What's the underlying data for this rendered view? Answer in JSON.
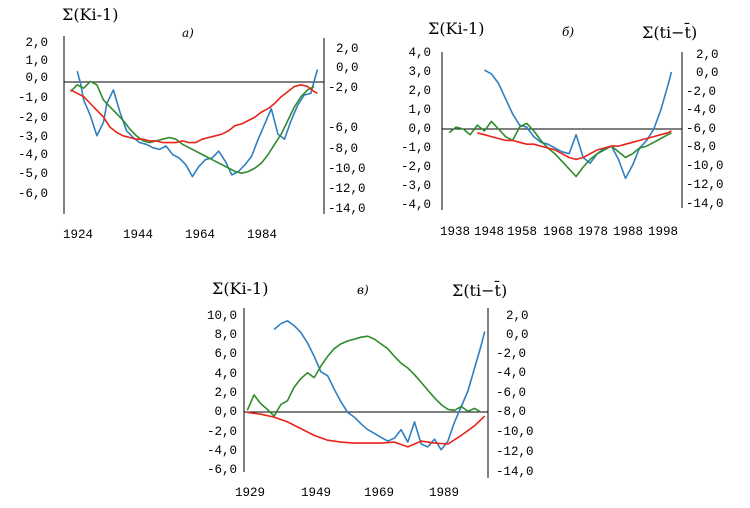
{
  "colors": {
    "blue": "#2f7fc1",
    "green": "#2e8b2e",
    "red": "#e8231a"
  },
  "chart_data": [
    {
      "type": "line",
      "panel_label": "а)",
      "left_ylabel": "Σ(Ki-1)",
      "right_ylabel": "",
      "xlabel": "",
      "xticks": [
        "1924",
        "1944",
        "1964",
        "1984"
      ],
      "left_ticks": [
        "2,0",
        "1,0",
        "0,0",
        "-1,0",
        "-2,0",
        "-3,0",
        "-4,0",
        "-5,0",
        "-6,0"
      ],
      "right_ticks": [
        "2,0",
        "0,0",
        "-2,0",
        "-6,0",
        "-8,0",
        "-10,0",
        "-12,0",
        "-14,0"
      ],
      "xlim": [
        1922,
        2001
      ],
      "ylim_left": [
        -7.5,
        2.5
      ],
      "ylim_right": [
        -14,
        2
      ],
      "series": [
        {
          "color": "blue",
          "axis": "left",
          "x": [
            1926,
            1927,
            1928,
            1930,
            1932,
            1934,
            1935,
            1937,
            1939,
            1941,
            1943,
            1945,
            1947,
            1949,
            1951,
            1953,
            1955,
            1957,
            1959,
            1961,
            1963,
            1965,
            1967,
            1969,
            1971,
            1973,
            1975,
            1977,
            1979,
            1981,
            1983,
            1985,
            1987,
            1989,
            1991,
            1993,
            1995,
            1997,
            1999
          ],
          "y": [
            0.9,
            0.2,
            -0.8,
            -1.7,
            -2.9,
            -2.1,
            -1.0,
            -0.2,
            -1.5,
            -2.6,
            -3.0,
            -3.3,
            -3.4,
            -3.6,
            -3.7,
            -3.5,
            -4.0,
            -4.2,
            -4.6,
            -5.3,
            -4.7,
            -4.3,
            -4.2,
            -3.8,
            -4.4,
            -5.2,
            -5.0,
            -4.6,
            -4.1,
            -3.1,
            -2.2,
            -1.3,
            -2.8,
            -3.1,
            -2.0,
            -1.1,
            -0.5,
            -0.4,
            1.0
          ]
        },
        {
          "color": "green",
          "axis": "left",
          "x": [
            1924,
            1926,
            1928,
            1930,
            1932,
            1934,
            1936,
            1938,
            1940,
            1942,
            1944,
            1946,
            1948,
            1950,
            1952,
            1954,
            1956,
            1958,
            1960,
            1962,
            1964,
            1966,
            1968,
            1970,
            1972,
            1974,
            1976,
            1978,
            1980,
            1982,
            1984,
            1986,
            1988,
            1990,
            1992,
            1994,
            1996,
            1998
          ],
          "y": [
            -0.3,
            0.1,
            -0.1,
            0.3,
            0.1,
            -0.8,
            -1.2,
            -1.6,
            -2.0,
            -2.5,
            -2.9,
            -3.2,
            -3.3,
            -3.2,
            -3.1,
            -3.0,
            -3.1,
            -3.4,
            -3.6,
            -3.8,
            -4.0,
            -4.2,
            -4.4,
            -4.6,
            -4.8,
            -5.0,
            -5.1,
            -5.0,
            -4.8,
            -4.5,
            -4.0,
            -3.4,
            -2.8,
            -2.0,
            -1.2,
            -0.6,
            -0.2,
            0.0
          ]
        },
        {
          "color": "red",
          "axis": "left",
          "x": [
            1924,
            1926,
            1928,
            1930,
            1932,
            1934,
            1936,
            1938,
            1940,
            1942,
            1944,
            1946,
            1948,
            1950,
            1952,
            1954,
            1956,
            1958,
            1960,
            1962,
            1964,
            1966,
            1968,
            1970,
            1972,
            1974,
            1976,
            1978,
            1980,
            1982,
            1984,
            1986,
            1988,
            1990,
            1992,
            1994,
            1996,
            1998,
            1999
          ],
          "y": [
            -0.2,
            -0.4,
            -0.6,
            -1.0,
            -1.4,
            -1.8,
            -2.4,
            -2.7,
            -2.9,
            -3.0,
            -3.1,
            -3.1,
            -3.2,
            -3.2,
            -3.3,
            -3.3,
            -3.3,
            -3.2,
            -3.3,
            -3.3,
            -3.1,
            -3.0,
            -2.9,
            -2.8,
            -2.6,
            -2.3,
            -2.2,
            -2.0,
            -1.8,
            -1.5,
            -1.3,
            -1.0,
            -0.6,
            -0.3,
            0.0,
            0.1,
            0.0,
            -0.3,
            -0.4
          ]
        }
      ]
    },
    {
      "type": "line",
      "panel_label": "б)",
      "left_ylabel": "Σ(Ki-1)",
      "right_ylabel": "Σ(ti−t̄)",
      "xlabel": "",
      "xticks": [
        "1938",
        "1948",
        "1958",
        "1968",
        "1978",
        "1988",
        "1998"
      ],
      "left_ticks": [
        "4,0",
        "3,0",
        "2,0",
        "1,0",
        "0,0",
        "-1,0",
        "-2,0",
        "-3,0",
        "-4,0"
      ],
      "right_ticks": [
        "2,0",
        "0,0",
        "-2,0",
        "-4,0",
        "-6,0",
        "-8,0",
        "-10,0",
        "-12,0",
        "-14,0"
      ],
      "xlim": [
        1935,
        2003
      ],
      "ylim_left": [
        -4,
        4
      ],
      "ylim_right": [
        -14,
        2
      ],
      "series": [
        {
          "color": "blue",
          "axis": "left",
          "x": [
            1947,
            1949,
            1951,
            1953,
            1955,
            1957,
            1959,
            1961,
            1963,
            1965,
            1967,
            1969,
            1971,
            1973,
            1975,
            1977,
            1979,
            1981,
            1983,
            1985,
            1987,
            1989,
            1991,
            1993,
            1995,
            1997,
            1999,
            2000
          ],
          "y": [
            3.1,
            2.9,
            2.4,
            1.6,
            0.8,
            0.2,
            0.1,
            -0.4,
            -0.7,
            -0.8,
            -1.0,
            -1.2,
            -1.3,
            -0.3,
            -1.5,
            -1.8,
            -1.3,
            -1.0,
            -0.9,
            -1.6,
            -2.6,
            -1.9,
            -1.0,
            -0.6,
            0.0,
            1.0,
            2.3,
            3.0
          ]
        },
        {
          "color": "green",
          "axis": "left",
          "x": [
            1937,
            1939,
            1941,
            1943,
            1945,
            1947,
            1949,
            1951,
            1953,
            1955,
            1957,
            1959,
            1961,
            1963,
            1965,
            1967,
            1969,
            1971,
            1973,
            1975,
            1977,
            1979,
            1981,
            1983,
            1985,
            1987,
            1989,
            1991,
            1993,
            1995,
            1997,
            1999,
            2000
          ],
          "y": [
            -0.2,
            0.1,
            0.0,
            -0.3,
            0.2,
            -0.1,
            0.4,
            0.0,
            -0.4,
            -0.6,
            0.1,
            0.3,
            -0.1,
            -0.6,
            -1.0,
            -1.3,
            -1.7,
            -2.1,
            -2.5,
            -2.0,
            -1.6,
            -1.3,
            -1.1,
            -0.9,
            -1.2,
            -1.5,
            -1.3,
            -1.0,
            -0.9,
            -0.7,
            -0.5,
            -0.3,
            -0.2
          ]
        },
        {
          "color": "red",
          "axis": "left",
          "x": [
            1945,
            1947,
            1949,
            1951,
            1953,
            1955,
            1957,
            1959,
            1961,
            1963,
            1965,
            1967,
            1969,
            1971,
            1973,
            1975,
            1977,
            1979,
            1981,
            1983,
            1985,
            1987,
            1989,
            1991,
            1993,
            1995,
            1997,
            1999,
            2000
          ],
          "y": [
            -0.2,
            -0.3,
            -0.4,
            -0.5,
            -0.6,
            -0.6,
            -0.7,
            -0.8,
            -0.8,
            -0.9,
            -1.0,
            -1.1,
            -1.3,
            -1.5,
            -1.6,
            -1.5,
            -1.3,
            -1.1,
            -1.0,
            -0.9,
            -0.9,
            -0.8,
            -0.7,
            -0.6,
            -0.5,
            -0.4,
            -0.3,
            -0.2,
            -0.1
          ]
        }
      ]
    },
    {
      "type": "line",
      "panel_label": "в)",
      "left_ylabel": "Σ(Ki-1)",
      "right_ylabel": "Σ(ti−t̄)",
      "xlabel": "",
      "xticks": [
        "1929",
        "1949",
        "1969",
        "1989"
      ],
      "left_ticks": [
        "10,0",
        "8,0",
        "6,0",
        "4,0",
        "2,0",
        "0,0",
        "-2,0",
        "-4,0",
        "-6,0"
      ],
      "right_ticks": [
        "2,0",
        "0,0",
        "-2,0",
        "-4,0",
        "-6,0",
        "-8,0",
        "-10,0",
        "-12,0",
        "-14,0"
      ],
      "xlim": [
        1928,
        2001
      ],
      "ylim_left": [
        -6,
        10
      ],
      "ylim_right": [
        -14,
        2
      ],
      "series": [
        {
          "color": "blue",
          "axis": "left",
          "x": [
            1937,
            1939,
            1941,
            1943,
            1945,
            1947,
            1949,
            1951,
            1953,
            1955,
            1957,
            1959,
            1961,
            1963,
            1965,
            1967,
            1969,
            1971,
            1973,
            1975,
            1977,
            1979,
            1981,
            1983,
            1985,
            1987,
            1989,
            1991,
            1993,
            1995,
            1997,
            1999,
            2000
          ],
          "y": [
            8.6,
            9.2,
            9.5,
            9.0,
            8.3,
            7.2,
            5.8,
            4.2,
            3.8,
            2.4,
            1.1,
            0.0,
            -0.5,
            -1.2,
            -1.8,
            -2.2,
            -2.6,
            -3.0,
            -2.7,
            -1.8,
            -3.1,
            -1.0,
            -3.3,
            -3.6,
            -2.8,
            -3.9,
            -3.0,
            -1.0,
            0.6,
            2.2,
            4.6,
            7.0,
            8.4
          ]
        },
        {
          "color": "green",
          "axis": "left",
          "x": [
            1929,
            1931,
            1933,
            1935,
            1937,
            1939,
            1941,
            1943,
            1945,
            1947,
            1949,
            1951,
            1953,
            1955,
            1957,
            1959,
            1961,
            1963,
            1965,
            1967,
            1969,
            1971,
            1973,
            1975,
            1977,
            1979,
            1981,
            1983,
            1985,
            1987,
            1989,
            1991,
            1993,
            1995,
            1997,
            1999
          ],
          "y": [
            0.2,
            1.8,
            0.9,
            0.3,
            -0.4,
            0.8,
            1.2,
            2.6,
            3.5,
            4.1,
            3.6,
            4.8,
            5.8,
            6.6,
            7.1,
            7.4,
            7.6,
            7.8,
            7.9,
            7.6,
            7.1,
            6.6,
            5.8,
            5.1,
            4.6,
            3.9,
            3.1,
            2.3,
            1.5,
            0.8,
            0.3,
            0.2,
            0.6,
            0.1,
            0.4,
            0.0
          ]
        },
        {
          "color": "red",
          "axis": "left",
          "x": [
            1929,
            1933,
            1937,
            1941,
            1945,
            1949,
            1953,
            1957,
            1961,
            1965,
            1969,
            1973,
            1977,
            1981,
            1985,
            1989,
            1993,
            1997,
            2000
          ],
          "y": [
            0.0,
            -0.2,
            -0.5,
            -1.0,
            -1.7,
            -2.4,
            -2.9,
            -3.1,
            -3.2,
            -3.2,
            -3.2,
            -3.1,
            -3.6,
            -3.0,
            -3.2,
            -3.3,
            -2.4,
            -1.4,
            -0.4
          ]
        }
      ]
    }
  ]
}
